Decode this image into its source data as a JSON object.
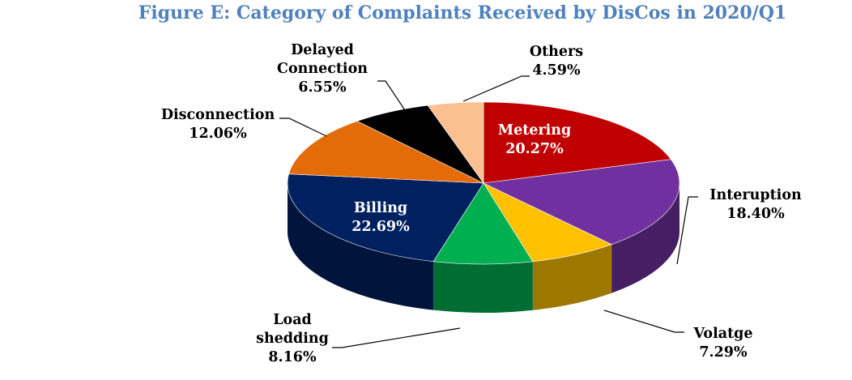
{
  "chart_data": {
    "type": "pie",
    "title": "Figure E: Category of Complaints Received by DisCos in 2020/Q1",
    "slices": [
      {
        "name": "Metering",
        "lines": [
          "Metering"
        ],
        "value": 20.27,
        "pct": "20.27%",
        "color": "#c00000",
        "label_position": "inside",
        "text_color": "#ffffff"
      },
      {
        "name": "Interuption",
        "lines": [
          "Interuption"
        ],
        "value": 18.4,
        "pct": "18.40%",
        "color": "#7030a0",
        "label_position": "outside-right",
        "text_color": "#000000"
      },
      {
        "name": "Volatge",
        "lines": [
          "Volatge"
        ],
        "value": 7.29,
        "pct": "7.29%",
        "color": "#ffc000",
        "label_position": "outside-bottom-right",
        "text_color": "#000000"
      },
      {
        "name": "Load shedding",
        "lines": [
          "Load",
          "shedding"
        ],
        "value": 8.16,
        "pct": "8.16%",
        "color": "#00b050",
        "label_position": "outside-bottom-left",
        "text_color": "#000000"
      },
      {
        "name": "Billing",
        "lines": [
          "Billing"
        ],
        "value": 22.69,
        "pct": "22.69%",
        "color": "#002060",
        "label_position": "inside",
        "text_color": "#ffffff"
      },
      {
        "name": "Disconnection",
        "lines": [
          "Disconnection"
        ],
        "value": 12.06,
        "pct": "12.06%",
        "color": "#e36c09",
        "label_position": "outside-left",
        "text_color": "#000000"
      },
      {
        "name": "Delayed Connection",
        "lines": [
          "Delayed",
          "Connection"
        ],
        "value": 6.55,
        "pct": "6.55%",
        "color": "#000000",
        "label_position": "outside-top-left",
        "text_color": "#000000"
      },
      {
        "name": "Others",
        "lines": [
          "Others"
        ],
        "value": 4.59,
        "pct": "4.59%",
        "color": "#fac090",
        "label_position": "outside-top",
        "text_color": "#000000"
      }
    ]
  }
}
